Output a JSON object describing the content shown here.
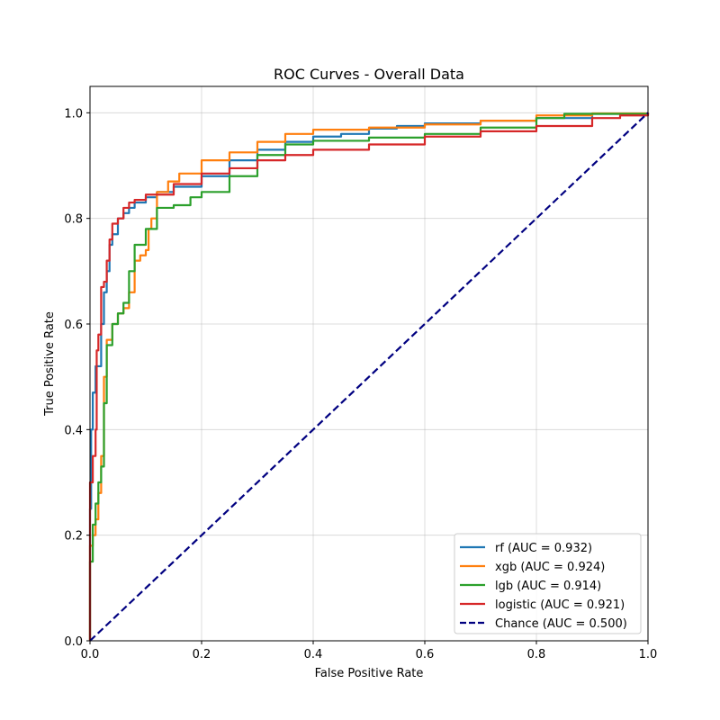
{
  "chart_data": {
    "type": "line",
    "title": "ROC Curves - Overall Data",
    "xlabel": "False Positive Rate",
    "ylabel": "True Positive Rate",
    "xlim": [
      0.0,
      1.0
    ],
    "ylim": [
      0.0,
      1.05
    ],
    "xticks": [
      "0.0",
      "0.2",
      "0.4",
      "0.6",
      "0.8",
      "1.0"
    ],
    "yticks": [
      "0.0",
      "0.2",
      "0.4",
      "0.6",
      "0.8",
      "1.0"
    ],
    "grid": true,
    "legend_position": "bottom-right",
    "series": [
      {
        "name": "rf (AUC = 0.932)",
        "color": "#1f77b4",
        "dash": "solid",
        "points": [
          [
            0,
            0
          ],
          [
            0,
            0.25
          ],
          [
            0.002,
            0.4
          ],
          [
            0.005,
            0.47
          ],
          [
            0.01,
            0.52
          ],
          [
            0.02,
            0.6
          ],
          [
            0.025,
            0.66
          ],
          [
            0.03,
            0.7
          ],
          [
            0.035,
            0.75
          ],
          [
            0.04,
            0.77
          ],
          [
            0.05,
            0.8
          ],
          [
            0.06,
            0.81
          ],
          [
            0.07,
            0.82
          ],
          [
            0.08,
            0.83
          ],
          [
            0.1,
            0.84
          ],
          [
            0.12,
            0.85
          ],
          [
            0.15,
            0.86
          ],
          [
            0.2,
            0.88
          ],
          [
            0.25,
            0.91
          ],
          [
            0.3,
            0.93
          ],
          [
            0.35,
            0.945
          ],
          [
            0.4,
            0.955
          ],
          [
            0.45,
            0.96
          ],
          [
            0.5,
            0.97
          ],
          [
            0.55,
            0.975
          ],
          [
            0.6,
            0.98
          ],
          [
            0.7,
            0.985
          ],
          [
            0.8,
            0.99
          ],
          [
            0.9,
            0.998
          ],
          [
            1.0,
            1.0
          ]
        ]
      },
      {
        "name": "xgb (AUC = 0.924)",
        "color": "#ff7f0e",
        "dash": "solid",
        "points": [
          [
            0,
            0
          ],
          [
            0,
            0.18
          ],
          [
            0.005,
            0.2
          ],
          [
            0.01,
            0.23
          ],
          [
            0.015,
            0.28
          ],
          [
            0.02,
            0.35
          ],
          [
            0.025,
            0.5
          ],
          [
            0.03,
            0.57
          ],
          [
            0.04,
            0.6
          ],
          [
            0.05,
            0.62
          ],
          [
            0.06,
            0.63
          ],
          [
            0.07,
            0.66
          ],
          [
            0.08,
            0.72
          ],
          [
            0.09,
            0.73
          ],
          [
            0.1,
            0.74
          ],
          [
            0.105,
            0.78
          ],
          [
            0.11,
            0.8
          ],
          [
            0.12,
            0.85
          ],
          [
            0.14,
            0.87
          ],
          [
            0.16,
            0.885
          ],
          [
            0.2,
            0.91
          ],
          [
            0.25,
            0.925
          ],
          [
            0.3,
            0.945
          ],
          [
            0.35,
            0.96
          ],
          [
            0.4,
            0.968
          ],
          [
            0.5,
            0.972
          ],
          [
            0.6,
            0.978
          ],
          [
            0.7,
            0.985
          ],
          [
            0.8,
            0.995
          ],
          [
            0.9,
            0.999
          ],
          [
            1.0,
            1.0
          ]
        ]
      },
      {
        "name": "lgb (AUC = 0.914)",
        "color": "#2ca02c",
        "dash": "solid",
        "points": [
          [
            0,
            0
          ],
          [
            0,
            0.15
          ],
          [
            0.005,
            0.22
          ],
          [
            0.01,
            0.26
          ],
          [
            0.015,
            0.3
          ],
          [
            0.02,
            0.33
          ],
          [
            0.025,
            0.45
          ],
          [
            0.03,
            0.56
          ],
          [
            0.04,
            0.6
          ],
          [
            0.05,
            0.62
          ],
          [
            0.06,
            0.64
          ],
          [
            0.07,
            0.7
          ],
          [
            0.08,
            0.75
          ],
          [
            0.1,
            0.78
          ],
          [
            0.12,
            0.82
          ],
          [
            0.15,
            0.825
          ],
          [
            0.18,
            0.84
          ],
          [
            0.2,
            0.85
          ],
          [
            0.25,
            0.88
          ],
          [
            0.3,
            0.92
          ],
          [
            0.35,
            0.94
          ],
          [
            0.4,
            0.947
          ],
          [
            0.5,
            0.953
          ],
          [
            0.6,
            0.96
          ],
          [
            0.7,
            0.972
          ],
          [
            0.8,
            0.99
          ],
          [
            0.85,
            0.998
          ],
          [
            1.0,
            1.0
          ]
        ]
      },
      {
        "name": "logistic (AUC = 0.921)",
        "color": "#d62728",
        "dash": "solid",
        "points": [
          [
            0,
            0
          ],
          [
            0,
            0.3
          ],
          [
            0.005,
            0.35
          ],
          [
            0.01,
            0.4
          ],
          [
            0.012,
            0.55
          ],
          [
            0.015,
            0.58
          ],
          [
            0.02,
            0.67
          ],
          [
            0.025,
            0.68
          ],
          [
            0.03,
            0.72
          ],
          [
            0.035,
            0.76
          ],
          [
            0.04,
            0.79
          ],
          [
            0.05,
            0.8
          ],
          [
            0.06,
            0.82
          ],
          [
            0.07,
            0.83
          ],
          [
            0.08,
            0.835
          ],
          [
            0.1,
            0.845
          ],
          [
            0.15,
            0.865
          ],
          [
            0.2,
            0.885
          ],
          [
            0.25,
            0.895
          ],
          [
            0.3,
            0.91
          ],
          [
            0.35,
            0.92
          ],
          [
            0.4,
            0.93
          ],
          [
            0.5,
            0.94
          ],
          [
            0.6,
            0.955
          ],
          [
            0.7,
            0.965
          ],
          [
            0.8,
            0.975
          ],
          [
            0.9,
            0.99
          ],
          [
            0.95,
            0.995
          ],
          [
            1.0,
            1.0
          ]
        ]
      },
      {
        "name": "Chance (AUC = 0.500)",
        "color": "#000080",
        "dash": "dashed",
        "points": [
          [
            0,
            0
          ],
          [
            1,
            1
          ]
        ]
      }
    ]
  }
}
